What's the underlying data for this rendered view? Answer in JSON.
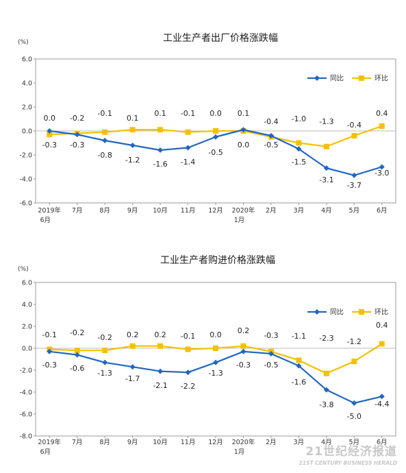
{
  "watermark": {
    "main": "21世纪经济报道",
    "sub": "21ST CENTURY BUSINESS HERALD"
  },
  "colors": {
    "yoy": "#2066c2",
    "mom": "#f5c000",
    "axis": "#999999",
    "zero_line": "#bbbbbb"
  },
  "chart_data": [
    {
      "type": "line",
      "title": "工业生产者出厂价格涨跌幅",
      "unit": "(%)",
      "ylim": [
        -6,
        6
      ],
      "yticks": [
        "6.0",
        "4.0",
        "2.0",
        "0.0",
        "-2.0",
        "-4.0",
        "-6.0"
      ],
      "categories": [
        [
          "2019年",
          "6月"
        ],
        [
          "7月"
        ],
        [
          "8月"
        ],
        [
          "9月"
        ],
        [
          "10月"
        ],
        [
          "11月"
        ],
        [
          "12月"
        ],
        [
          "2020年",
          "1月"
        ],
        [
          "2月"
        ],
        [
          "3月"
        ],
        [
          "4月"
        ],
        [
          "5月"
        ],
        [
          "6月"
        ]
      ],
      "legend": "top-right",
      "series": [
        {
          "key": "yoy",
          "name": "同比",
          "values": [
            0.0,
            -0.3,
            -0.8,
            -1.2,
            -1.6,
            -1.4,
            -0.5,
            0.1,
            -0.4,
            -1.5,
            -3.1,
            -3.7,
            -3.0
          ]
        },
        {
          "key": "mom",
          "name": "环比",
          "values": [
            -0.3,
            -0.2,
            -0.1,
            0.1,
            0.1,
            -0.1,
            0.0,
            0.0,
            -0.5,
            -1.0,
            -1.3,
            -0.4,
            0.4
          ]
        }
      ],
      "data_labels": {
        "upper": [
          "0.0",
          "-0.2",
          "-0.1",
          "0.1",
          "0.1",
          "-0.1",
          "0.0",
          "0.1",
          "-0.4",
          "-1.0",
          "-1.3",
          "-0.4",
          "0.4"
        ],
        "lower": [
          "-0.3",
          "-0.3",
          "-0.8",
          "-1.2",
          "-1.6",
          "-1.4",
          "-0.5",
          "0.0",
          "-0.5",
          "-1.5",
          "-3.1",
          "-3.7",
          "-3.0"
        ]
      }
    },
    {
      "type": "line",
      "title": "工业生产者购进价格涨跌幅",
      "unit": "(%)",
      "ylim": [
        -8,
        6
      ],
      "yticks": [
        "6.0",
        "4.0",
        "2.0",
        "0.0",
        "-2.0",
        "-4.0",
        "-6.0",
        "-8.0"
      ],
      "categories": [
        [
          "2019年",
          "6月"
        ],
        [
          "7月"
        ],
        [
          "8月"
        ],
        [
          "9月"
        ],
        [
          "10月"
        ],
        [
          "11月"
        ],
        [
          "12月"
        ],
        [
          "2020年",
          "1月"
        ],
        [
          "2月"
        ],
        [
          "3月"
        ],
        [
          "4月"
        ],
        [
          "5月"
        ],
        [
          "6月"
        ]
      ],
      "legend": "top-right",
      "series": [
        {
          "key": "yoy",
          "name": "同比",
          "values": [
            -0.3,
            -0.6,
            -1.3,
            -1.7,
            -2.1,
            -2.2,
            -1.3,
            -0.3,
            -0.5,
            -1.6,
            -3.8,
            -5.0,
            -4.4
          ]
        },
        {
          "key": "mom",
          "name": "环比",
          "values": [
            -0.1,
            -0.2,
            -0.2,
            0.2,
            0.2,
            -0.1,
            0.0,
            0.2,
            -0.3,
            -1.1,
            -2.3,
            -1.2,
            0.4
          ]
        }
      ],
      "data_labels": {
        "upper": [
          "-0.1",
          "-0.2",
          "-0.2",
          "0.2",
          "0.2",
          "-0.1",
          "0.0",
          "0.2",
          "-0.3",
          "-1.1",
          "-2.3",
          "-1.2",
          "0.4"
        ],
        "lower": [
          "-0.3",
          "-0.6",
          "-1.3",
          "-1.7",
          "-2.1",
          "-2.2",
          "-1.3",
          "-0.3",
          "-0.5",
          "-1.6",
          "-3.8",
          "-5.0",
          "-4.4"
        ]
      }
    }
  ]
}
